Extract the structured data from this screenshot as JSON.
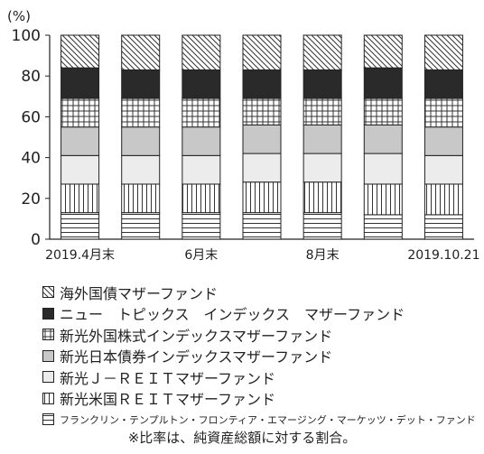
{
  "chart_data": {
    "type": "bar",
    "stacked": true,
    "ylabel": "(%)",
    "ylim": [
      0,
      100
    ],
    "yticks": [
      0,
      20,
      40,
      60,
      80,
      100
    ],
    "grid": false,
    "legend_position": "bottom",
    "x_tick_labels": [
      "2019.4月末",
      "6月末",
      "8月末",
      "2019.10.21"
    ],
    "series": [
      {
        "name": "フランクリン・テンプルトン・フロンティア・エマージング・マーケッツ・デット・ファンド",
        "pattern": "horizontal-lines",
        "values": [
          13,
          13,
          13,
          13,
          13,
          12,
          12
        ]
      },
      {
        "name": "新光米国ＲＥＩＴマザーファンド",
        "pattern": "vertical-lines",
        "values": [
          14,
          14,
          14,
          15,
          15,
          15,
          15
        ]
      },
      {
        "name": "新光Ｊ－ＲＥＩＴマザーファンド",
        "pattern": "light-gray",
        "values": [
          14,
          14,
          14,
          14,
          14,
          15,
          14
        ]
      },
      {
        "name": "新光日本債券インデックスマザーファンド",
        "pattern": "medium-gray",
        "values": [
          14,
          14,
          14,
          14,
          14,
          14,
          14
        ]
      },
      {
        "name": "新光外国株式インデックスマザーファンド",
        "pattern": "grid",
        "values": [
          14,
          14,
          14,
          13,
          13,
          13,
          14
        ]
      },
      {
        "name": "ニュー　トピックス　インデックス　マザーファンド",
        "pattern": "black",
        "values": [
          15,
          14,
          14,
          14,
          14,
          15,
          14
        ]
      },
      {
        "name": "海外国債マザーファンド",
        "pattern": "diagonal-lines",
        "values": [
          16,
          17,
          17,
          17,
          17,
          16,
          17
        ]
      }
    ]
  },
  "footnote": "※比率は、純資産総額に対する割合。"
}
